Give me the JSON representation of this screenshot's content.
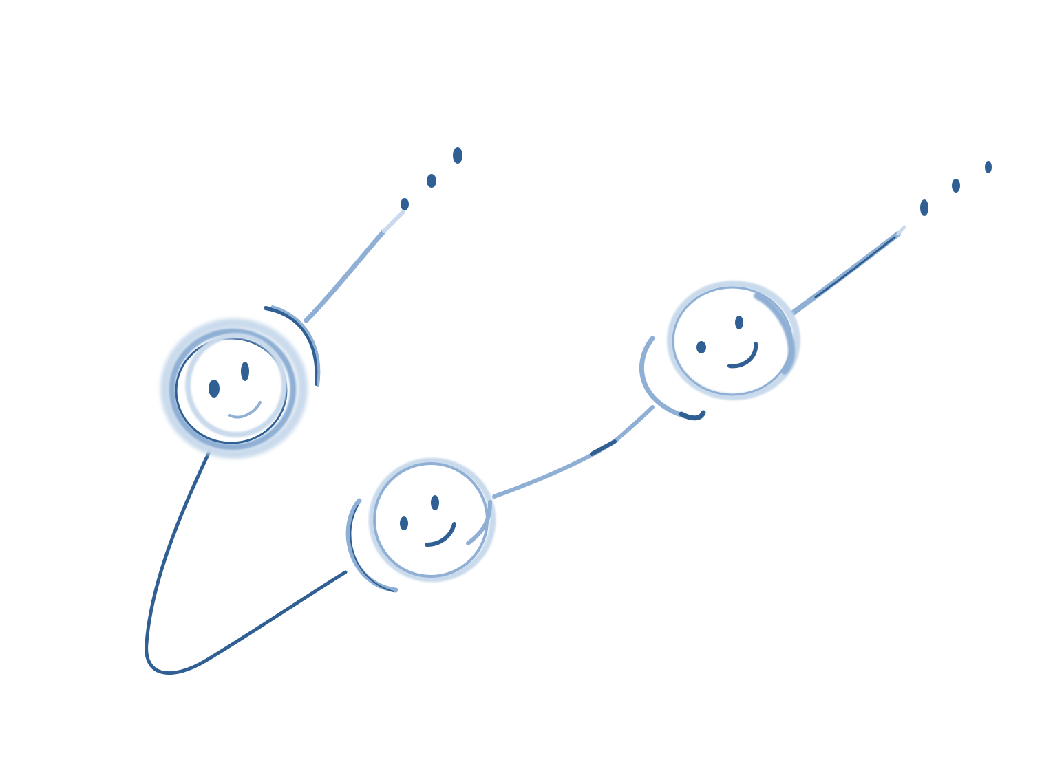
{
  "diagram": {
    "background_color": "#ffffff",
    "ink_color": "#2f5f93",
    "ink_light_color": "#8fb0d4",
    "ink_faint_color": "#c9daec",
    "nodes": [
      {
        "name": "smiley-node-1",
        "icon": "smiley-face-icon"
      },
      {
        "name": "smiley-node-2",
        "icon": "smiley-face-icon"
      },
      {
        "name": "smiley-node-3",
        "icon": "smiley-face-icon"
      }
    ],
    "continuation_marks": [
      {
        "name": "ellipsis-left",
        "text": "..."
      },
      {
        "name": "ellipsis-right",
        "text": "..."
      }
    ]
  }
}
